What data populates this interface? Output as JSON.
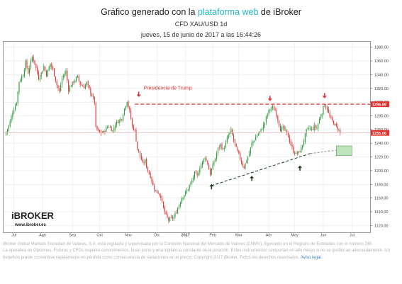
{
  "header": {
    "title_prefix": "Gráfico generado con la ",
    "title_link": "plataforma web",
    "title_suffix": " de iBroker",
    "instrument": "CFD XAU/USD 1d",
    "datetime": "jueves, 15 de junio de 2017 a las 16:44:26"
  },
  "logo": {
    "brand": "iBROKER",
    "url": "www.ibroker.es"
  },
  "annotations": {
    "trump_label": "Presidencia de Trump"
  },
  "colors": {
    "up": "#2e9c3a",
    "down": "#d93a3a",
    "resistance": "#e0322f",
    "support": "#2b4a2b",
    "current_price_line": "#f3b3b3",
    "projection_box": "#bfe4bb",
    "grid": "#e6e6e6",
    "axis": "#555555"
  },
  "chart_data": {
    "type": "candlestick",
    "symbol": "CFD XAU/USD",
    "timeframe": "1d",
    "y_ticks": [
      1120,
      1140,
      1160,
      1180,
      1200,
      1220,
      1240,
      1260,
      1280,
      1300,
      1320,
      1340,
      1360,
      1380
    ],
    "ylim": [
      1110,
      1388
    ],
    "x_ticks": [
      {
        "label": "Jul",
        "t": 0
      },
      {
        "label": "Ago",
        "t": 22
      },
      {
        "label": "Sep",
        "t": 45
      },
      {
        "label": "Oct",
        "t": 66
      },
      {
        "label": "Nov",
        "t": 88
      },
      {
        "label": "Dic",
        "t": 110
      },
      {
        "label": "2017",
        "t": 132
      },
      {
        "label": "Feb",
        "t": 153
      },
      {
        "label": "Mar",
        "t": 173
      },
      {
        "label": "Abr",
        "t": 196
      },
      {
        "label": "May",
        "t": 216
      },
      {
        "label": "Jun",
        "t": 238
      },
      {
        "label": "Jul",
        "t": 260
      }
    ],
    "xlim": [
      -8,
      274
    ],
    "price_labels": {
      "resistance": "1296.89",
      "current": "1255.06"
    },
    "resistance_level": 1296.89,
    "current_price": 1255.06,
    "close_path": [
      [
        -7,
        1252
      ],
      [
        -4,
        1265
      ],
      [
        -1,
        1285
      ],
      [
        2,
        1300
      ],
      [
        4,
        1330
      ],
      [
        7,
        1340
      ],
      [
        9,
        1358
      ],
      [
        11,
        1343
      ],
      [
        14,
        1366
      ],
      [
        16,
        1357
      ],
      [
        19,
        1335
      ],
      [
        21,
        1342
      ],
      [
        23,
        1352
      ],
      [
        25,
        1340
      ],
      [
        28,
        1356
      ],
      [
        30,
        1347
      ],
      [
        33,
        1325
      ],
      [
        35,
        1315
      ],
      [
        37,
        1335
      ],
      [
        40,
        1345
      ],
      [
        42,
        1318
      ],
      [
        44,
        1325
      ],
      [
        46,
        1330
      ],
      [
        49,
        1337
      ],
      [
        51,
        1326
      ],
      [
        54,
        1322
      ],
      [
        56,
        1328
      ],
      [
        58,
        1318
      ],
      [
        60,
        1310
      ],
      [
        62,
        1300
      ],
      [
        63,
        1262
      ],
      [
        66,
        1255
      ],
      [
        69,
        1256
      ],
      [
        71,
        1262
      ],
      [
        73,
        1265
      ],
      [
        76,
        1258
      ],
      [
        78,
        1268
      ],
      [
        80,
        1272
      ],
      [
        83,
        1276
      ],
      [
        85,
        1290
      ],
      [
        87,
        1302
      ],
      [
        89,
        1286
      ],
      [
        91,
        1265
      ],
      [
        93,
        1258
      ],
      [
        95,
        1232
      ],
      [
        97,
        1222
      ],
      [
        99,
        1210
      ],
      [
        101,
        1214
      ],
      [
        103,
        1200
      ],
      [
        105,
        1192
      ],
      [
        107,
        1178
      ],
      [
        109,
        1170
      ],
      [
        111,
        1168
      ],
      [
        113,
        1162
      ],
      [
        115,
        1145
      ],
      [
        117,
        1134
      ],
      [
        119,
        1128
      ],
      [
        121,
        1130
      ],
      [
        123,
        1132
      ],
      [
        125,
        1140
      ],
      [
        127,
        1150
      ],
      [
        129,
        1160
      ],
      [
        131,
        1165
      ],
      [
        133,
        1170
      ],
      [
        135,
        1178
      ],
      [
        137,
        1185
      ],
      [
        139,
        1196
      ],
      [
        141,
        1192
      ],
      [
        143,
        1205
      ],
      [
        145,
        1212
      ],
      [
        147,
        1220
      ],
      [
        149,
        1210
      ],
      [
        151,
        1195
      ],
      [
        153,
        1208
      ],
      [
        155,
        1218
      ],
      [
        157,
        1232
      ],
      [
        159,
        1238
      ],
      [
        161,
        1230
      ],
      [
        163,
        1240
      ],
      [
        165,
        1252
      ],
      [
        167,
        1258
      ],
      [
        169,
        1245
      ],
      [
        171,
        1232
      ],
      [
        173,
        1223
      ],
      [
        175,
        1212
      ],
      [
        177,
        1205
      ],
      [
        179,
        1215
      ],
      [
        181,
        1225
      ],
      [
        183,
        1240
      ],
      [
        185,
        1245
      ],
      [
        187,
        1252
      ],
      [
        189,
        1256
      ],
      [
        191,
        1262
      ],
      [
        193,
        1270
      ],
      [
        195,
        1283
      ],
      [
        197,
        1290
      ],
      [
        199,
        1292
      ],
      [
        201,
        1288
      ],
      [
        203,
        1275
      ],
      [
        205,
        1260
      ],
      [
        207,
        1262
      ],
      [
        209,
        1258
      ],
      [
        211,
        1250
      ],
      [
        213,
        1238
      ],
      [
        215,
        1228
      ],
      [
        217,
        1225
      ],
      [
        219,
        1226
      ],
      [
        221,
        1232
      ],
      [
        223,
        1244
      ],
      [
        225,
        1258
      ],
      [
        227,
        1262
      ],
      [
        229,
        1260
      ],
      [
        231,
        1264
      ],
      [
        233,
        1262
      ],
      [
        235,
        1275
      ],
      [
        237,
        1285
      ],
      [
        238,
        1292
      ],
      [
        239,
        1296
      ],
      [
        241,
        1290
      ],
      [
        243,
        1278
      ],
      [
        245,
        1272
      ],
      [
        247,
        1266
      ],
      [
        249,
        1262
      ],
      [
        251,
        1255
      ]
    ],
    "support_trendline": [
      [
        152,
        1178
      ],
      [
        228,
        1225
      ]
    ],
    "support_projection": [
      [
        228,
        1225
      ],
      [
        258,
        1232
      ]
    ],
    "projection_box": {
      "t": [
        248,
        260
      ],
      "y": [
        1222,
        1236
      ]
    },
    "red_arrows": [
      {
        "t": 96,
        "y": 1310
      },
      {
        "t": 197,
        "y": 1304
      },
      {
        "t": 239,
        "y": 1308
      }
    ],
    "green_arrows": [
      {
        "t": 152,
        "y": 1178
      },
      {
        "t": 183,
        "y": 1190
      },
      {
        "t": 220,
        "y": 1205
      }
    ],
    "trump_label_anchor": {
      "t": 96,
      "y": 1320
    }
  },
  "footer": {
    "line1": "iBroker Global Markets Sociedad de Valores, S.A. está regulada y supervisada por la Comisión Nacional del Mercado de Valores (CNMV), figurando en el Registro de Entidades con el número 260.",
    "line2": "La operativa en Opciones, Futuros y CFDs requiere conocimientos, buen juicio y una vigilancia constante de la posición. Estos instrumentos comportan un alto riesgo si no se gestionan adecuadamente. Un",
    "line3_prefix": "beneficio puede convertirse rápidamente en pérdida como consecuencia de variaciones en el precio. Copyright 2017 iBroker. Todos los derechos reservados. ",
    "legal_link": "Aviso legal."
  }
}
